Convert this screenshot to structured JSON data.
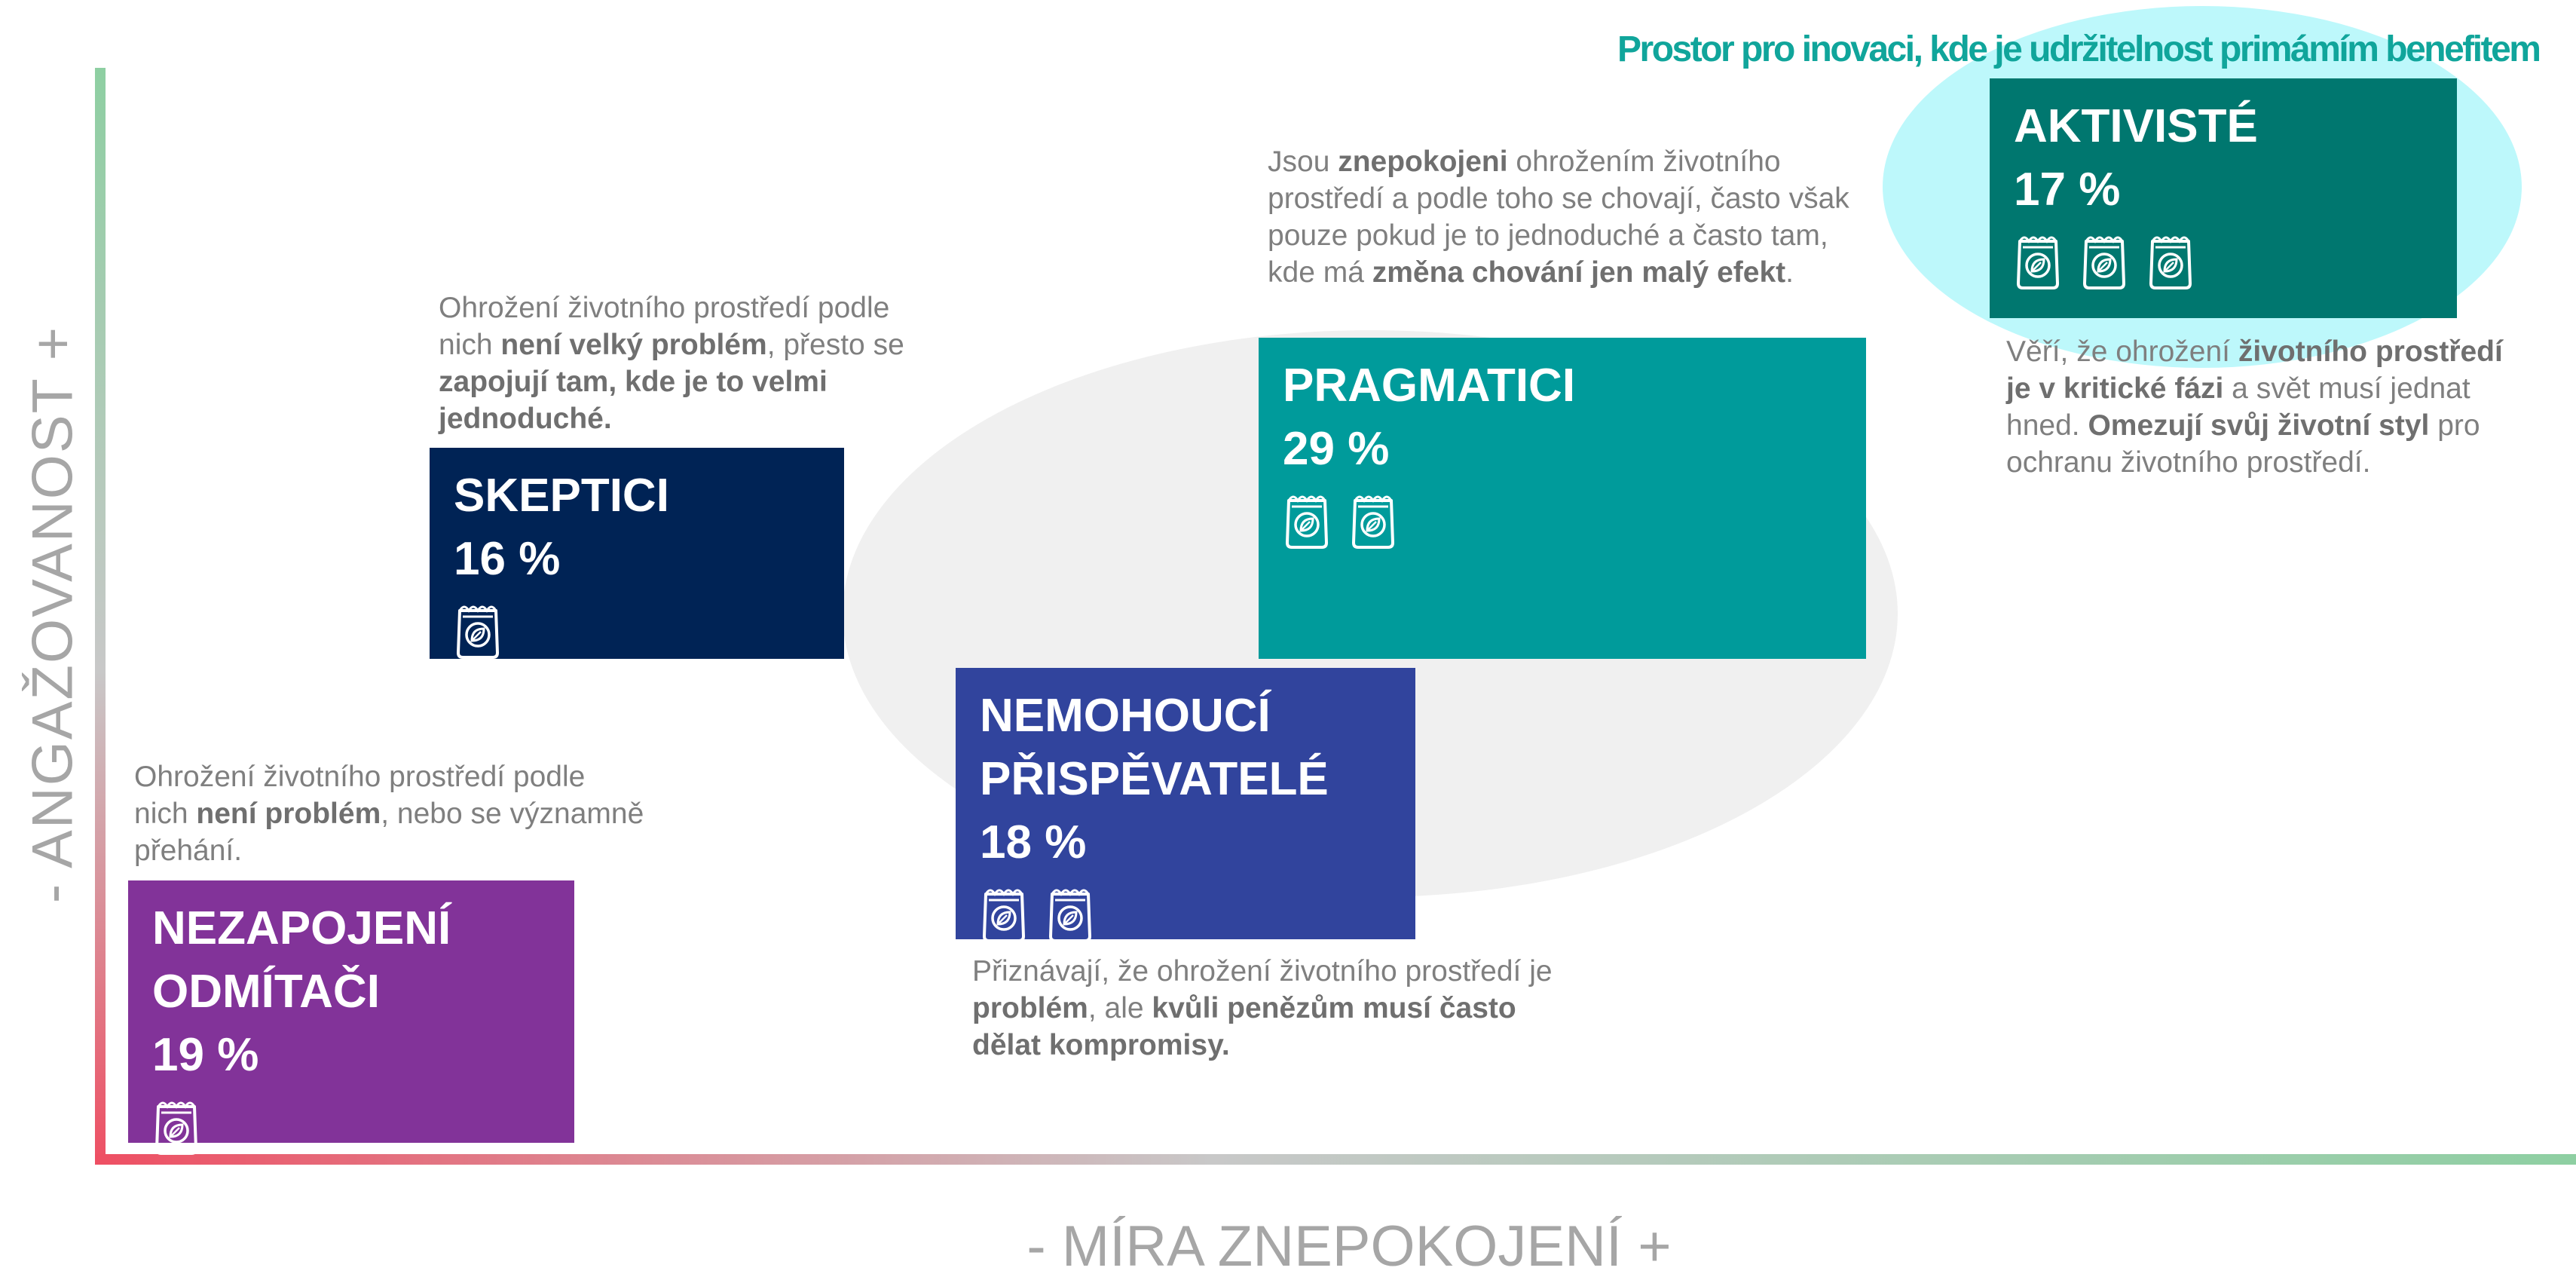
{
  "axes": {
    "y_label": "-  ANGAŽOVANOST  +",
    "x_label": "- MÍRA ZNEPOKOJENÍ +"
  },
  "innovation_label": "Prostor pro inovaci, kde je udržitelnost primámím benefitem",
  "colors": {
    "nezapojeni": "#823399",
    "skeptici": "#002355",
    "nemohouci": "#31449d",
    "pragmatici": "#009b9b",
    "aktiviste": "#00776f",
    "innovation_text": "#10a59b",
    "highlight": "#bdf8fb"
  },
  "icon_name": "eco-bag-icon",
  "segments": [
    {
      "id": "nezapojeni",
      "name_line1": "NEZAPOJENÍ",
      "name_line2": "ODMÍTAČI",
      "percent": "19 %",
      "icon_count": 1,
      "description": [
        {
          "t": "Ohrožení životního prostředí podle nich "
        },
        {
          "t": "není problém",
          "b": true
        },
        {
          "t": ", nebo se významně přehání."
        }
      ]
    },
    {
      "id": "skeptici",
      "name_line1": "SKEPTICI",
      "name_line2": "",
      "percent": "16 %",
      "icon_count": 1,
      "description": [
        {
          "t": "Ohrožení životního prostředí podle nich "
        },
        {
          "t": "není velký problém",
          "b": true
        },
        {
          "t": ", přesto se "
        },
        {
          "t": "zapojují tam, kde je to velmi jednoduché.",
          "b": true
        }
      ]
    },
    {
      "id": "nemohouci",
      "name_line1": "NEMOHOUCÍ",
      "name_line2": "PŘISPĚVATELÉ",
      "percent": "18 %",
      "icon_count": 2,
      "description": [
        {
          "t": "Přiznávají, že ohrožení životního prostředí je "
        },
        {
          "t": "problém",
          "b": true
        },
        {
          "t": ", ale "
        },
        {
          "t": "kvůli penězům musí často dělat kompromisy.",
          "b": true
        }
      ]
    },
    {
      "id": "pragmatici",
      "name_line1": "PRAGMATICI",
      "name_line2": "",
      "percent": "29 %",
      "icon_count": 2,
      "description": [
        {
          "t": "Jsou "
        },
        {
          "t": "znepokojeni",
          "b": true
        },
        {
          "t": " ohrožením životního prostředí a podle toho se chovají, často však pouze pokud je to jednoduché a často tam, kde má "
        },
        {
          "t": "změna chování jen malý efekt",
          "b": true
        },
        {
          "t": "."
        }
      ]
    },
    {
      "id": "aktiviste",
      "name_line1": "AKTIVISTÉ",
      "name_line2": "",
      "percent": "17 %",
      "icon_count": 3,
      "description": [
        {
          "t": "Věří, že ohrožení "
        },
        {
          "t": "životního prostředí je v kritické fázi",
          "b": true
        },
        {
          "t": " a svět musí jednat hned. "
        },
        {
          "t": "Omezují svůj životní styl",
          "b": true
        },
        {
          "t": " pro ochranu životního prostředí."
        }
      ]
    }
  ]
}
